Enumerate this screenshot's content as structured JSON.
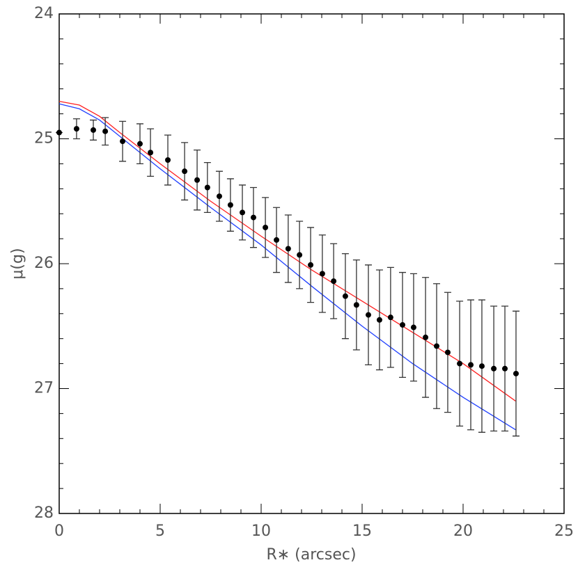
{
  "chart_data": {
    "type": "scatter",
    "xlabel": "R∗ (arcsec)",
    "ylabel": "μ(g)",
    "xlim": [
      0,
      25
    ],
    "xticks": [
      0,
      5,
      10,
      15,
      20,
      25
    ],
    "x_minor_step": 1,
    "ylim": [
      24,
      28
    ],
    "yticks": [
      24,
      25,
      26,
      27,
      28
    ],
    "y_minor_step": 0.2,
    "y_inverted": true,
    "points": {
      "color": "#000000",
      "error_color": "#333333",
      "x": [
        0,
        0.86,
        1.69,
        2.28,
        3.14,
        4.0,
        4.52,
        5.38,
        6.21,
        6.83,
        7.34,
        7.93,
        8.48,
        9.07,
        9.62,
        10.21,
        10.76,
        11.34,
        11.9,
        12.45,
        13.03,
        13.59,
        14.17,
        14.72,
        15.31,
        15.86,
        16.41,
        17.0,
        17.55,
        18.14,
        18.69,
        19.24,
        19.83,
        20.38,
        20.93,
        21.52,
        22.07,
        22.62
      ],
      "values": [
        24.95,
        24.92,
        24.93,
        24.94,
        25.02,
        25.04,
        25.11,
        25.17,
        25.26,
        25.33,
        25.39,
        25.46,
        25.53,
        25.59,
        25.63,
        25.71,
        25.81,
        25.88,
        25.93,
        26.01,
        26.08,
        26.14,
        26.26,
        26.33,
        26.41,
        26.45,
        26.43,
        26.49,
        26.51,
        26.59,
        26.66,
        26.71,
        26.8,
        26.81,
        26.82,
        26.84,
        26.84,
        26.88
      ],
      "errors": [
        0,
        0.08,
        0.08,
        0.11,
        0.16,
        0.16,
        0.19,
        0.2,
        0.23,
        0.24,
        0.2,
        0.2,
        0.21,
        0.22,
        0.24,
        0.24,
        0.26,
        0.27,
        0.27,
        0.3,
        0.31,
        0.3,
        0.34,
        0.36,
        0.4,
        0.4,
        0.4,
        0.42,
        0.43,
        0.48,
        0.5,
        0.48,
        0.5,
        0.52,
        0.53,
        0.5,
        0.5,
        0.5
      ]
    },
    "lines": [
      {
        "color": "#ff2020",
        "x": [
          0,
          1,
          2,
          3,
          5,
          7.5,
          10,
          12.5,
          15,
          17.5,
          20,
          22.6
        ],
        "values": [
          24.7,
          24.73,
          24.82,
          24.95,
          25.2,
          25.5,
          25.78,
          26.05,
          26.3,
          26.55,
          26.8,
          27.1
        ]
      },
      {
        "color": "#2040ff",
        "x": [
          0,
          1,
          2,
          3,
          5,
          7.5,
          10,
          12.5,
          15,
          17.5,
          20,
          22.6
        ],
        "values": [
          24.72,
          24.76,
          24.85,
          24.98,
          25.24,
          25.55,
          25.85,
          26.18,
          26.5,
          26.8,
          27.07,
          27.33
        ]
      }
    ]
  }
}
